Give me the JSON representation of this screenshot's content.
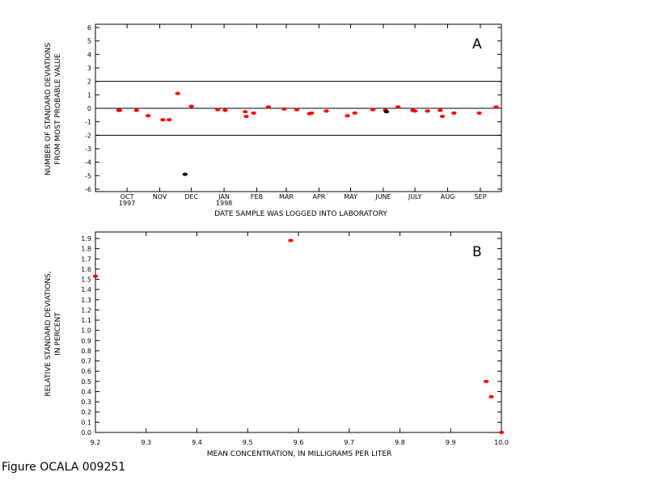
{
  "caption": "Figure OCALA 009251",
  "chart_data": [
    {
      "type": "scatter",
      "panel_label": "A",
      "xlabel": "DATE SAMPLE WAS LOGGED INTO LABORATORY",
      "ylabel_line1": "NUMBER OF STANDARD DEVIATIONS",
      "ylabel_line2": "FROM MOST PROBABLE VALUE",
      "ylim": [
        -6,
        6
      ],
      "yticks": [
        -6,
        -5,
        -4,
        -3,
        -2,
        -1,
        0,
        1,
        2,
        3,
        4,
        5,
        6
      ],
      "xlim": [
        "1997-09-15",
        "1998-10-05"
      ],
      "month_labels": [
        {
          "label": "OCT",
          "date": "1997-10-15",
          "year": "1997"
        },
        {
          "label": "NOV",
          "date": "1997-11-15"
        },
        {
          "label": "DEC",
          "date": "1997-12-15"
        },
        {
          "label": "JAN",
          "date": "1998-01-15",
          "year": "1998"
        },
        {
          "label": "FEB",
          "date": "1998-02-15"
        },
        {
          "label": "MAR",
          "date": "1998-03-15"
        },
        {
          "label": "APR",
          "date": "1998-04-15"
        },
        {
          "label": "MAY",
          "date": "1998-05-15"
        },
        {
          "label": "JUNE",
          "date": "1998-06-15"
        },
        {
          "label": "JULY",
          "date": "1998-07-15"
        },
        {
          "label": "AUG",
          "date": "1998-08-15"
        },
        {
          "label": "SEP",
          "date": "1998-09-15"
        }
      ],
      "reference_lines": [
        2,
        0,
        -2
      ],
      "points": [
        {
          "x": "1997-10-07",
          "y": -0.15,
          "color": "#ff0000"
        },
        {
          "x": "1997-10-08",
          "y": -0.15,
          "color": "#ff0000"
        },
        {
          "x": "1997-10-24",
          "y": -0.15,
          "color": "#ff0000"
        },
        {
          "x": "1997-11-04",
          "y": -0.55,
          "color": "#ff0000"
        },
        {
          "x": "1997-11-18",
          "y": -0.85,
          "color": "#ff0000"
        },
        {
          "x": "1997-11-24",
          "y": -0.85,
          "color": "#ff0000"
        },
        {
          "x": "1997-12-02",
          "y": 1.1,
          "color": "#ff0000"
        },
        {
          "x": "1997-12-09",
          "y": -4.9,
          "color": "#000000"
        },
        {
          "x": "1997-12-15",
          "y": 0.15,
          "color": "#ff0000"
        },
        {
          "x": "1998-01-09",
          "y": -0.1,
          "color": "#ff0000"
        },
        {
          "x": "1998-01-16",
          "y": -0.15,
          "color": "#ff0000"
        },
        {
          "x": "1998-02-04",
          "y": -0.25,
          "color": "#ff0000"
        },
        {
          "x": "1998-02-05",
          "y": -0.6,
          "color": "#ff0000"
        },
        {
          "x": "1998-02-12",
          "y": -0.35,
          "color": "#ff0000"
        },
        {
          "x": "1998-02-26",
          "y": 0.1,
          "color": "#ff0000"
        },
        {
          "x": "1998-03-13",
          "y": -0.05,
          "color": "#ff0000"
        },
        {
          "x": "1998-03-25",
          "y": -0.1,
          "color": "#ff0000"
        },
        {
          "x": "1998-04-06",
          "y": -0.4,
          "color": "#ff0000"
        },
        {
          "x": "1998-04-08",
          "y": -0.35,
          "color": "#ff0000"
        },
        {
          "x": "1998-04-22",
          "y": -0.2,
          "color": "#ff0000"
        },
        {
          "x": "1998-05-12",
          "y": -0.55,
          "color": "#ff0000"
        },
        {
          "x": "1998-05-19",
          "y": -0.35,
          "color": "#ff0000"
        },
        {
          "x": "1998-06-05",
          "y": -0.1,
          "color": "#ff0000"
        },
        {
          "x": "1998-06-17",
          "y": -0.15,
          "color": "#ff0000"
        },
        {
          "x": "1998-06-18",
          "y": -0.25,
          "color": "#000000"
        },
        {
          "x": "1998-06-29",
          "y": 0.1,
          "color": "#ff0000"
        },
        {
          "x": "1998-07-13",
          "y": -0.15,
          "color": "#ff0000"
        },
        {
          "x": "1998-07-15",
          "y": -0.2,
          "color": "#ff0000"
        },
        {
          "x": "1998-07-27",
          "y": -0.2,
          "color": "#ff0000"
        },
        {
          "x": "1998-08-08",
          "y": -0.15,
          "color": "#ff0000"
        },
        {
          "x": "1998-08-10",
          "y": -0.6,
          "color": "#ff0000"
        },
        {
          "x": "1998-08-21",
          "y": -0.35,
          "color": "#ff0000"
        },
        {
          "x": "1998-09-14",
          "y": -0.35,
          "color": "#ff0000"
        },
        {
          "x": "1998-09-30",
          "y": 0.1,
          "color": "#ff0000"
        }
      ]
    },
    {
      "type": "scatter",
      "panel_label": "B",
      "xlabel": "MEAN CONCENTRATION, IN MILLIGRAMS PER LITER",
      "ylabel_line1": "RELATIVE STANDARD DEVIATIONS,",
      "ylabel_line2": "IN PERCENT",
      "xlim": [
        9.2,
        10.0
      ],
      "xticks": [
        9.2,
        9.3,
        9.4,
        9.5,
        9.6,
        9.7,
        9.8,
        9.9,
        10.0
      ],
      "xtick_labels": [
        "9.2",
        "9.3",
        "9.4",
        "9.5",
        "9.6",
        "9.7",
        "9.8",
        "9.9",
        "10.0"
      ],
      "ylim": [
        0.0,
        1.9
      ],
      "yticks": [
        0.0,
        0.1,
        0.2,
        0.3,
        0.4,
        0.5,
        0.6,
        0.7,
        0.8,
        0.9,
        1.0,
        1.1,
        1.2,
        1.3,
        1.4,
        1.5,
        1.6,
        1.7,
        1.8,
        1.9
      ],
      "ytick_labels": [
        "0.0",
        "0.1",
        "0.2",
        "0.3",
        "0.4",
        "0.5",
        "0.6",
        "0.7",
        "0.8",
        "0.9",
        "1.0",
        "1.1",
        "1.2",
        "1.3",
        "1.4",
        "1.5",
        "1.6",
        "1.7",
        "1.8",
        "1.9"
      ],
      "points": [
        {
          "x": 9.2,
          "y": 1.53,
          "color": "#ff0000"
        },
        {
          "x": 9.585,
          "y": 1.88,
          "color": "#ff0000"
        },
        {
          "x": 9.97,
          "y": 0.5,
          "color": "#ff0000"
        },
        {
          "x": 9.98,
          "y": 0.35,
          "color": "#ff0000"
        },
        {
          "x": 10.0,
          "y": 0.0,
          "color": "#ff0000"
        }
      ]
    }
  ]
}
